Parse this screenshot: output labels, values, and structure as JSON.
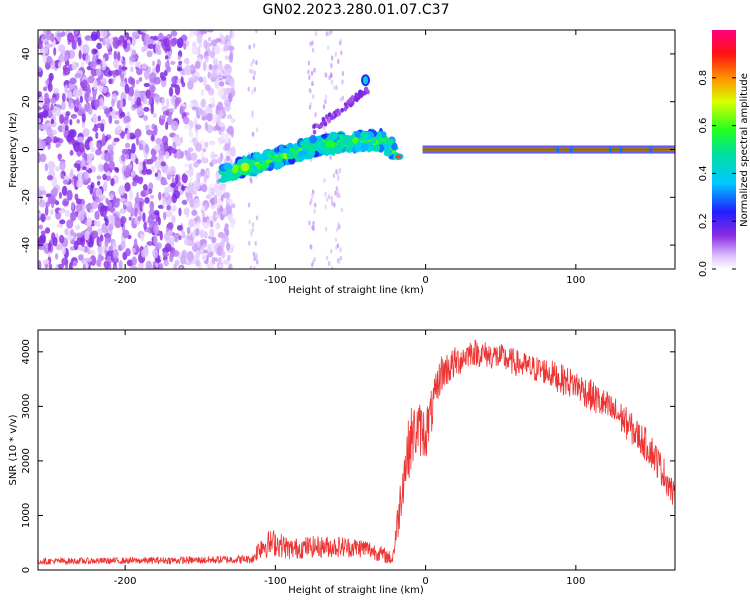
{
  "figure": {
    "title": "GN02.2023.280.01.07.C37"
  },
  "chart_data": [
    {
      "type": "heatmap",
      "xlabel": "Height of straight line (km)",
      "ylabel": "Frequency (Hz)",
      "xlim": [
        -258,
        166
      ],
      "ylim": [
        -50,
        50
      ],
      "xticks": [
        -200,
        -100,
        0,
        100
      ],
      "yticks": [
        -40,
        -20,
        0,
        20,
        40
      ],
      "grid": false,
      "colorbar": {
        "label": "Normalized spectral amplitude",
        "range": [
          0,
          1
        ],
        "ticks": [
          0.0,
          0.2,
          0.4,
          0.6,
          0.8
        ],
        "colormap": "hsv-rainbow (white-violet-blue-cyan-green-yellow-red-magenta)"
      },
      "features": {
        "noise_region_x": [
          -258,
          -128
        ],
        "drifting_signal_x": [
          -135,
          -20
        ],
        "carrier_frequency_hz": 0,
        "carrier_x": [
          0,
          166
        ],
        "dip_x": -18,
        "dip_frequency_hz": -3,
        "isolated_blob": {
          "x": -40,
          "frequency_hz": 29
        }
      }
    },
    {
      "type": "line",
      "xlabel": "Height of straight line (km)",
      "ylabel": "SNR (10 * v/v)",
      "xlim": [
        -258,
        166
      ],
      "ylim": [
        0,
        4400
      ],
      "xticks": [
        -200,
        -100,
        0,
        100
      ],
      "yticks": [
        0,
        1000,
        2000,
        3000,
        4000
      ],
      "grid": false,
      "series": [
        {
          "color": "#ee3333",
          "envelope_x": [
            -258,
            -200,
            -150,
            -115,
            -110,
            -100,
            -90,
            -80,
            -60,
            -40,
            -30,
            -22,
            -18,
            -15,
            -10,
            -5,
            0,
            5,
            10,
            20,
            30,
            40,
            50,
            60,
            70,
            80,
            90,
            100,
            110,
            120,
            130,
            140,
            150,
            160,
            166
          ],
          "envelope_y": [
            160,
            170,
            180,
            200,
            450,
            500,
            380,
            420,
            430,
            400,
            300,
            200,
            1000,
            1700,
            2400,
            2600,
            2500,
            3000,
            3600,
            3800,
            4000,
            3950,
            3900,
            3800,
            3700,
            3650,
            3500,
            3400,
            3200,
            3000,
            2800,
            2500,
            2200,
            1700,
            1300
          ],
          "noise_amplitude": [
            60,
            60,
            70,
            80,
            250,
            250,
            200,
            200,
            200,
            180,
            150,
            120,
            400,
            500,
            600,
            500,
            500,
            400,
            350,
            300,
            250,
            250,
            250,
            250,
            250,
            250,
            280,
            280,
            300,
            300,
            300,
            300,
            320,
            300,
            250
          ]
        }
      ]
    }
  ]
}
